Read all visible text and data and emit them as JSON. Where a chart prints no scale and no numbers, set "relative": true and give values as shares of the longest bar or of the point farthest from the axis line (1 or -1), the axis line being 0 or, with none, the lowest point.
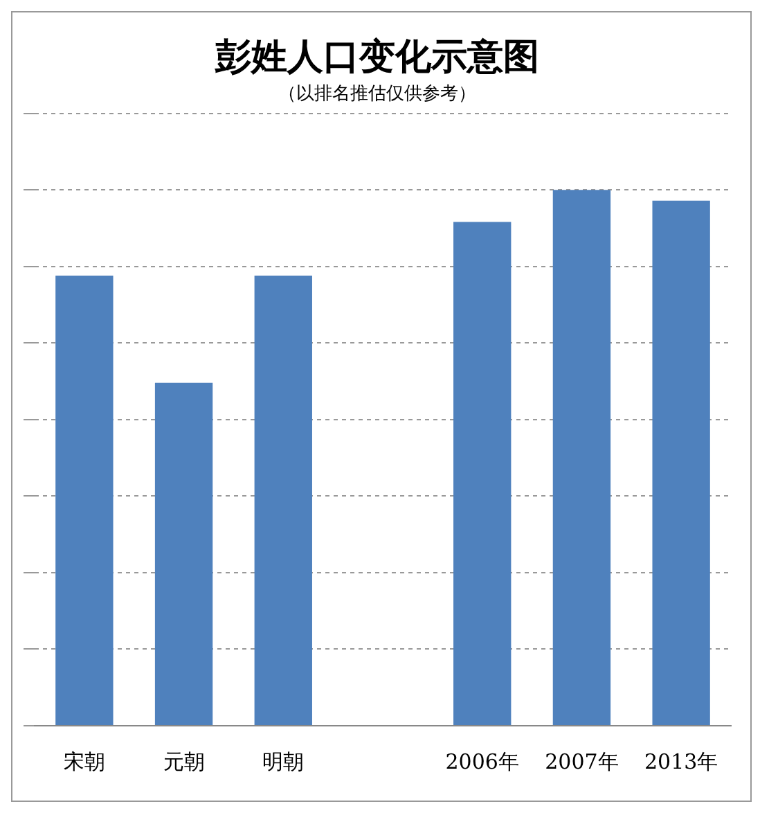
{
  "chart_data": {
    "type": "bar",
    "title": "彭姓人口变化示意图",
    "subtitle": "（以排名推估仅供参考）",
    "categories": [
      "宋朝",
      "元朝",
      "明朝",
      null,
      "2006年",
      "2007年",
      "2013年"
    ],
    "relative": true,
    "color": "#4f81bd",
    "values": [
      0.84,
      0.64,
      0.84,
      null,
      0.94,
      1,
      0.98
    ],
    "grid": "y",
    "legend": false
  }
}
